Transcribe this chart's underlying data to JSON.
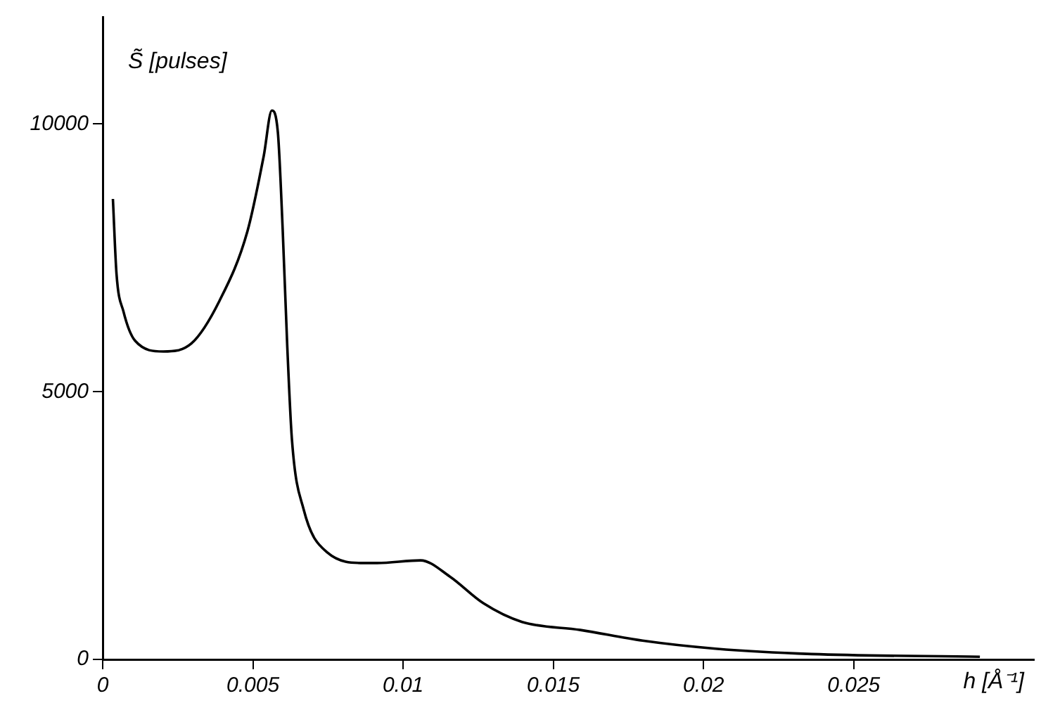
{
  "chart_data": {
    "type": "line",
    "xlabel": "h [Å⁻¹]",
    "ylabel": "S̃ [pulses]",
    "x": [
      0.00034,
      0.00046,
      0.00069,
      0.00108,
      0.00202,
      0.00295,
      0.00389,
      0.00482,
      0.00536,
      0.00563,
      0.00583,
      0.00599,
      0.00614,
      0.0063,
      0.00669,
      0.00747,
      0.0087,
      0.00914,
      0.01058,
      0.01155,
      0.01267,
      0.01396,
      0.0159,
      0.01797,
      0.0204,
      0.0236,
      0.0292
    ],
    "series": [
      {
        "color": "#000000",
        "values": [
          8600,
          7200,
          6500,
          5950,
          5750,
          5900,
          6700,
          8000,
          9400,
          10250,
          9850,
          8050,
          5900,
          4100,
          2800,
          2000,
          1800,
          1800,
          1850,
          1550,
          1050,
          700,
          550,
          350,
          200,
          100,
          50
        ]
      }
    ],
    "xlim": [
      0,
      0.031
    ],
    "xticks": [
      0,
      0.005,
      0.01,
      0.015,
      0.02,
      0.025
    ],
    "ylim": [
      0,
      12000
    ],
    "yticks": [
      0,
      5000,
      10000
    ],
    "grid": false,
    "legend": false,
    "marker": "none",
    "line_style": "solid"
  }
}
